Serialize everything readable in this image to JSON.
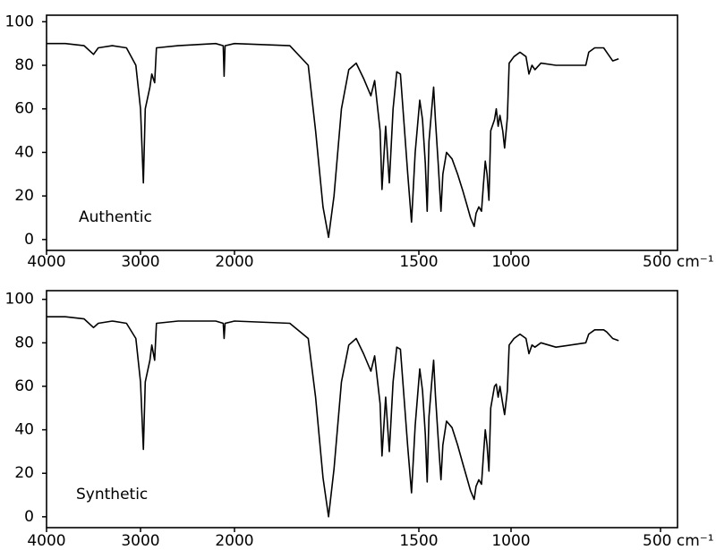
{
  "chart_data": [
    {
      "type": "line",
      "annotation": "Authentic",
      "color": "#000000",
      "xlim": [
        4000,
        443
      ],
      "ylim": [
        -5,
        103
      ],
      "xticks": [
        4000,
        3000,
        2000,
        1500,
        1000,
        {
          "value": 500,
          "label": "500 cm⁻¹"
        }
      ],
      "yticks": [
        0,
        20,
        40,
        60,
        80,
        100
      ],
      "x": [
        4000,
        3800,
        3600,
        3500,
        3450,
        3300,
        3150,
        3050,
        3000,
        2970,
        2950,
        2900,
        2880,
        2850,
        2830,
        2600,
        2200,
        2120,
        2110,
        2100,
        2000,
        1850,
        1800,
        1780,
        1760,
        1745,
        1730,
        1710,
        1690,
        1670,
        1650,
        1630,
        1620,
        1605,
        1600,
        1590,
        1580,
        1570,
        1560,
        1550,
        1530,
        1520,
        1510,
        1495,
        1480,
        1465,
        1455,
        1445,
        1430,
        1420,
        1410,
        1395,
        1380,
        1370,
        1350,
        1320,
        1290,
        1260,
        1240,
        1220,
        1200,
        1190,
        1175,
        1160,
        1150,
        1140,
        1130,
        1120,
        1110,
        1090,
        1080,
        1070,
        1060,
        1045,
        1035,
        1020,
        1010,
        990,
        970,
        950,
        940,
        930,
        920,
        900,
        850,
        750,
        740,
        720,
        690,
        680,
        660,
        640
      ],
      "values": [
        90,
        90,
        89,
        85,
        88,
        89,
        88,
        80,
        60,
        26,
        60,
        70,
        76,
        72,
        88,
        89,
        90,
        89,
        75,
        89,
        90,
        89,
        80,
        50,
        15,
        1,
        20,
        60,
        78,
        81,
        74,
        66,
        73,
        50,
        23,
        52,
        26,
        60,
        77,
        76,
        30,
        8,
        40,
        64,
        55,
        35,
        13,
        45,
        60,
        70,
        55,
        35,
        13,
        30,
        40,
        37,
        30,
        22,
        16,
        10,
        6,
        12,
        15,
        13,
        25,
        36,
        30,
        18,
        50,
        55,
        60,
        52,
        57,
        50,
        42,
        56,
        81,
        84,
        86,
        84,
        76,
        80,
        78,
        81,
        80,
        80,
        86,
        88,
        88,
        86,
        82,
        83
      ]
    },
    {
      "type": "line",
      "annotation": "Synthetic",
      "color": "#000000",
      "xlim": [
        4000,
        443
      ],
      "ylim": [
        -5,
        104
      ],
      "xticks": [
        4000,
        3000,
        2000,
        1500,
        1000,
        {
          "value": 500,
          "label": "500 cm⁻¹"
        }
      ],
      "yticks": [
        0,
        20,
        40,
        60,
        80,
        100
      ],
      "x": [
        4000,
        3800,
        3600,
        3500,
        3450,
        3300,
        3150,
        3050,
        3000,
        2970,
        2950,
        2900,
        2880,
        2850,
        2830,
        2600,
        2200,
        2120,
        2110,
        2100,
        2000,
        1850,
        1800,
        1780,
        1760,
        1745,
        1730,
        1710,
        1690,
        1670,
        1650,
        1630,
        1620,
        1605,
        1600,
        1590,
        1580,
        1570,
        1560,
        1550,
        1530,
        1520,
        1510,
        1495,
        1480,
        1465,
        1455,
        1445,
        1430,
        1420,
        1410,
        1395,
        1380,
        1370,
        1350,
        1320,
        1290,
        1260,
        1240,
        1220,
        1200,
        1190,
        1175,
        1160,
        1150,
        1140,
        1130,
        1120,
        1110,
        1090,
        1080,
        1070,
        1060,
        1045,
        1035,
        1020,
        1010,
        990,
        970,
        950,
        940,
        930,
        920,
        900,
        850,
        750,
        740,
        720,
        690,
        680,
        660,
        640
      ],
      "values": [
        92,
        92,
        91,
        87,
        89,
        90,
        89,
        82,
        62,
        31,
        62,
        72,
        79,
        72,
        89,
        90,
        90,
        89,
        82,
        89,
        90,
        89,
        82,
        55,
        18,
        0,
        22,
        62,
        79,
        82,
        75,
        67,
        74,
        52,
        28,
        55,
        30,
        62,
        78,
        77,
        32,
        11,
        42,
        68,
        58,
        38,
        16,
        46,
        62,
        72,
        56,
        36,
        17,
        33,
        44,
        41,
        33,
        24,
        18,
        12,
        8,
        14,
        17,
        15,
        28,
        40,
        33,
        21,
        50,
        60,
        61,
        55,
        60,
        52,
        47,
        58,
        79,
        82,
        84,
        82,
        75,
        79,
        78,
        80,
        78,
        80,
        84,
        86,
        86,
        85,
        82,
        81
      ]
    }
  ]
}
